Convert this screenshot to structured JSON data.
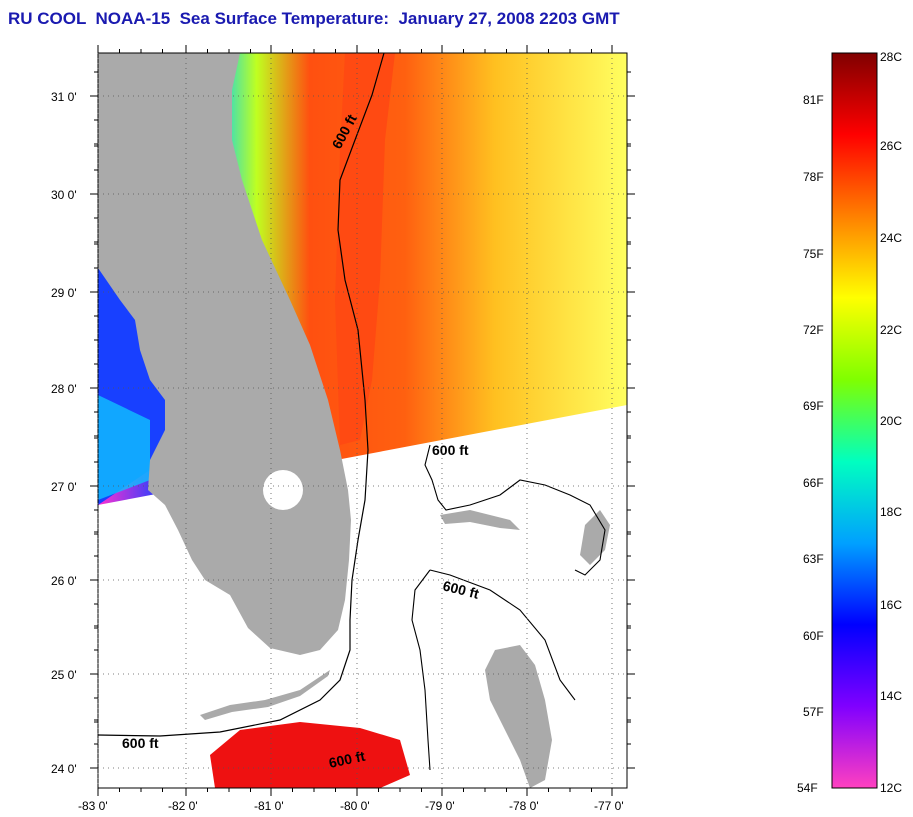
{
  "title": "RU COOL  NOAA-15  Sea Surface Temperature:  January 27, 2008 2203 GMT",
  "map": {
    "lon_labels": [
      "-83 0'",
      "-82 0'",
      "-81 0'",
      "-80 0'",
      "-79 0'",
      "-78 0'",
      "-77 0'"
    ],
    "lat_labels": [
      "31 0'",
      "30 0'",
      "29 0'",
      "28 0'",
      "27 0'",
      "26 0'",
      "25 0'",
      "24 0'"
    ],
    "contour_label": "600 ft",
    "colors": {
      "land": "#aaaaaa",
      "no_data": "#ffffff",
      "gulf_stream": "#ff4a10",
      "warm_offshore": "#ffd010",
      "far_offshore": "#ffff40",
      "nearshore_cold": "#2050ff",
      "florida_keys_warm": "#ee1111"
    }
  },
  "colorbar": {
    "celsius_labels": [
      "28C",
      "26C",
      "24C",
      "22C",
      "20C",
      "18C",
      "16C",
      "14C",
      "12C"
    ],
    "fahrenheit_labels": [
      "81F",
      "78F",
      "75F",
      "72F",
      "69F",
      "66F",
      "63F",
      "60F",
      "57F",
      "54F"
    ],
    "stops": [
      "#800000",
      "#ff0000",
      "#ff8000",
      "#ffff00",
      "#80ff00",
      "#00ffc0",
      "#00a0ff",
      "#0000ff",
      "#8000ff",
      "#ff40c0"
    ]
  }
}
